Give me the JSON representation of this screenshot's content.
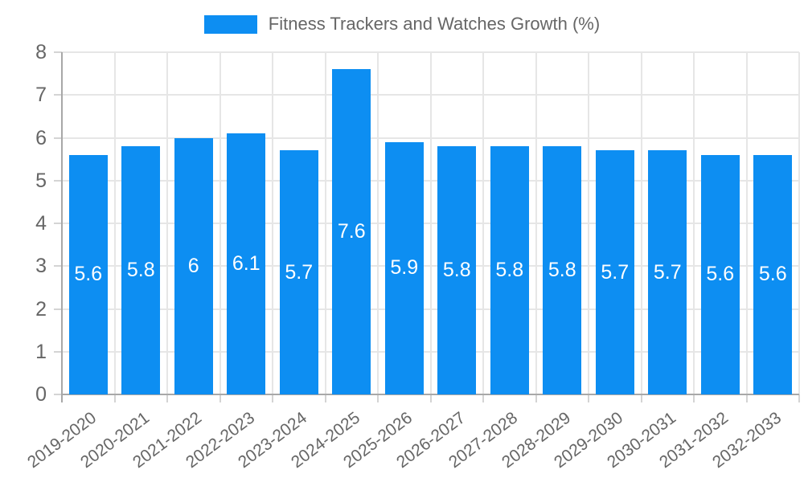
{
  "chart_data": {
    "type": "bar",
    "legend": "Fitness Trackers and Watches Growth (%)",
    "legend_position": "top",
    "title": "",
    "xlabel": "",
    "ylabel": "",
    "categories": [
      "2019-2020",
      "2020-2021",
      "2021-2022",
      "2022-2023",
      "2023-2024",
      "2024-2025",
      "2025-2026",
      "2026-2027",
      "2027-2028",
      "2028-2029",
      "2029-2030",
      "2030-2031",
      "2031-2032",
      "2032-2033"
    ],
    "values": [
      5.6,
      5.8,
      6.0,
      6.1,
      5.7,
      7.6,
      5.9,
      5.8,
      5.8,
      5.8,
      5.7,
      5.7,
      5.6,
      5.6
    ],
    "bar_labels": [
      "5.6",
      "5.8",
      "6",
      "6.1",
      "5.7",
      "7.6",
      "5.9",
      "5.8",
      "5.8",
      "5.8",
      "5.7",
      "5.7",
      "5.6",
      "5.6"
    ],
    "ylim": [
      0,
      8
    ],
    "yticks": [
      0,
      1,
      2,
      3,
      4,
      5,
      6,
      7,
      8
    ],
    "grid": true
  },
  "colors": {
    "bar": "#0d8ef2",
    "value_label": "#ffffff",
    "axis": "#a8a8a8",
    "grid": "#e6e6e6",
    "tick": "#d4d4d4",
    "text": "#666666",
    "background": "#ffffff"
  }
}
